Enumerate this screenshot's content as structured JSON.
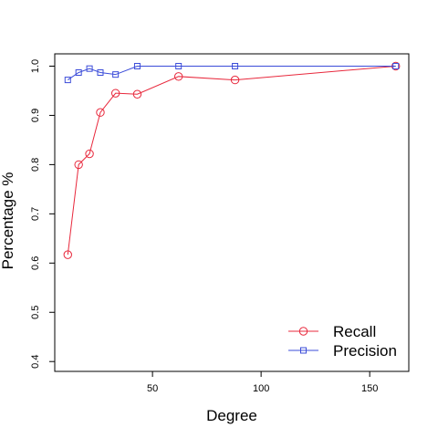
{
  "chart_data": {
    "type": "line",
    "title": "",
    "xlabel": "Degree",
    "ylabel": "Percentage %",
    "xlim": [
      5,
      168
    ],
    "ylim": [
      0.38,
      1.025
    ],
    "xticks": [
      50,
      100,
      150
    ],
    "yticks": [
      0.4,
      0.5,
      0.6,
      0.7,
      0.8,
      0.9,
      1.0
    ],
    "xtick_labels": [
      "50",
      "100",
      "150"
    ],
    "ytick_labels": [
      "0.4",
      "0.5",
      "0.6",
      "0.7",
      "0.8",
      "0.9",
      "1.0"
    ],
    "grid": false,
    "legend_position": "bottom-right",
    "series": [
      {
        "name": "Recall",
        "color": "#e8283c",
        "marker": "circle",
        "x": [
          11,
          16,
          21,
          26,
          33,
          43,
          62,
          88,
          162
        ],
        "y": [
          0.617,
          0.8,
          0.822,
          0.906,
          0.945,
          0.943,
          0.979,
          0.972,
          1.0
        ]
      },
      {
        "name": "Precision",
        "color": "#3b4cd9",
        "marker": "square",
        "x": [
          11,
          16,
          21,
          26,
          33,
          43,
          62,
          88,
          162
        ],
        "y": [
          0.972,
          0.987,
          0.995,
          0.987,
          0.983,
          1.0,
          1.0,
          1.0,
          1.0
        ]
      }
    ]
  }
}
